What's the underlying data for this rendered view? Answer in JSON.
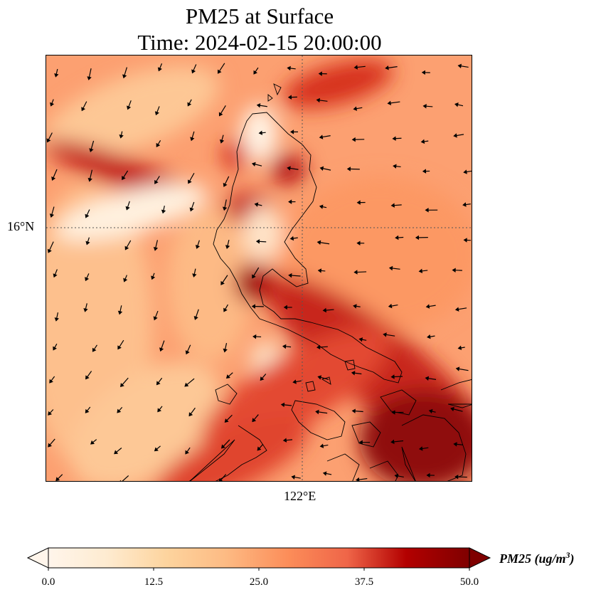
{
  "title": {
    "line1": "PM25 at Surface",
    "line2": "Time: 2024-02-15 20:00:00"
  },
  "map": {
    "lat_label": "16°N",
    "lon_label": "122°E",
    "features": [
      "pm25-field",
      "wind-vectors",
      "coastline",
      "gridlines"
    ]
  },
  "colorbar": {
    "label": "PM25 (ug/m",
    "label_sup": "3",
    "label_close": ")",
    "ticks": [
      "0.0",
      "12.5",
      "25.0",
      "37.5",
      "50.0"
    ],
    "colors": [
      "#fff5eb",
      "#fdd49e",
      "#fdbb84",
      "#fc8d59",
      "#ef6548",
      "#d7301f",
      "#b30000",
      "#7f0000"
    ]
  }
}
